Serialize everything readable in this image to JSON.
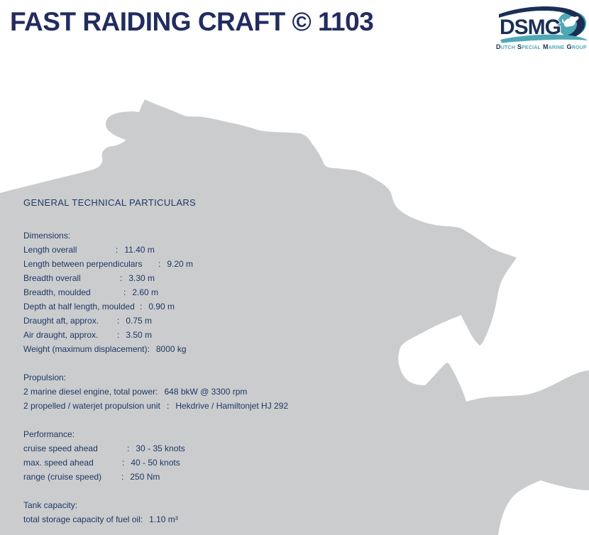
{
  "header": {
    "title": "FAST RAIDING CRAFT © 1103"
  },
  "logo": {
    "acronym": "DSMG",
    "subtitle_words": [
      "DUTCH",
      "SPECIAL",
      "MARINE",
      "GROUP"
    ]
  },
  "colors": {
    "title_navy": "#222C5E",
    "text_navy": "#1F3864",
    "silhouette_gray": "#CBCCCE",
    "logo_navy": "#1B2F55",
    "logo_teal": "#4FA8B6"
  },
  "content": {
    "heading": "GENERAL TECHNICAL PARTICULARS",
    "separator": ":",
    "sections": [
      {
        "title": "Dimensions:",
        "rows": [
          {
            "label": "Length overall",
            "value": "11.40 m"
          },
          {
            "label": "Length between perpendiculars",
            "value": "9.20 m"
          },
          {
            "label": "Breadth overall",
            "value": "3.30 m"
          },
          {
            "label": "Breadth, moulded",
            "value": "2.60 m"
          },
          {
            "label": "Depth at half length, moulded",
            "value": "0.90 m"
          },
          {
            "label": "Draught aft, approx.",
            "value": "0.75 m"
          },
          {
            "label": "Air draught, approx.",
            "value": "3.50 m"
          },
          {
            "label": "Weight (maximum displacement)",
            "value": "8000 kg"
          }
        ]
      },
      {
        "title": "Propulsion:",
        "rows": [
          {
            "label": "2 marine diesel engine, total power",
            "value": "648 bkW @ 3300 rpm"
          },
          {
            "label": "2 propelled / waterjet propulsion unit",
            "value": "Hekdrive / Hamiltonjet HJ 292"
          }
        ]
      },
      {
        "title": "Performance:",
        "rows": [
          {
            "label": "cruise speed ahead",
            "value": "30 - 35 knots"
          },
          {
            "label": "max. speed ahead",
            "value": "40 - 50 knots"
          },
          {
            "label": "range (cruise speed)",
            "value": "250 Nm"
          }
        ]
      },
      {
        "title": "Tank capacity:",
        "rows": [
          {
            "label": "total storage capacity of fuel oil",
            "value": "1.10 m³"
          }
        ]
      }
    ]
  }
}
